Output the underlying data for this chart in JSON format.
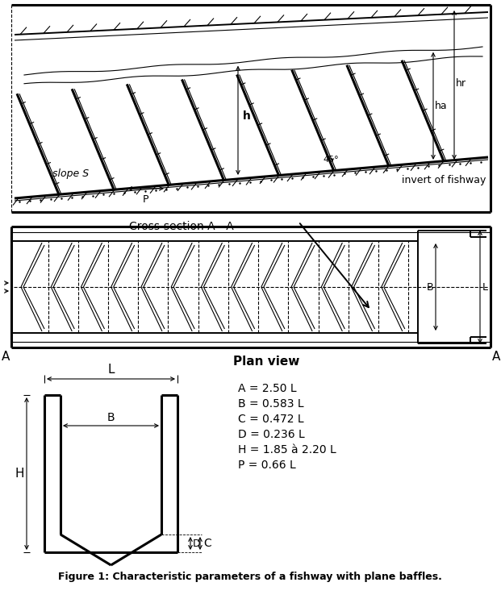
{
  "figure_caption": "Figure 1: Characteristic parameters of a fishway with plane baffles.",
  "equations": [
    "A = 2.50 L",
    "B = 0.583 L",
    "C = 0.472 L",
    "D = 0.236 L",
    "H = 1.85 à 2.20 L",
    "P = 0.66 L"
  ],
  "labels": {
    "slope_s": "slope S",
    "h": "h",
    "ha": "ha",
    "hr": "hr",
    "angle": "45°",
    "invert": "invert of fishway",
    "cross_section": "Cross-section A - A",
    "plan_view": "Plan view",
    "P_label": "P",
    "B_label": "B",
    "L_label": "L",
    "H_label": "H",
    "C_label": "C",
    "D_label": "D",
    "A_label": "A"
  },
  "line_color": "#000000",
  "bg_color": "#ffffff",
  "lw_thick": 2.2,
  "lw_thin": 0.8,
  "lw_medium": 1.4
}
